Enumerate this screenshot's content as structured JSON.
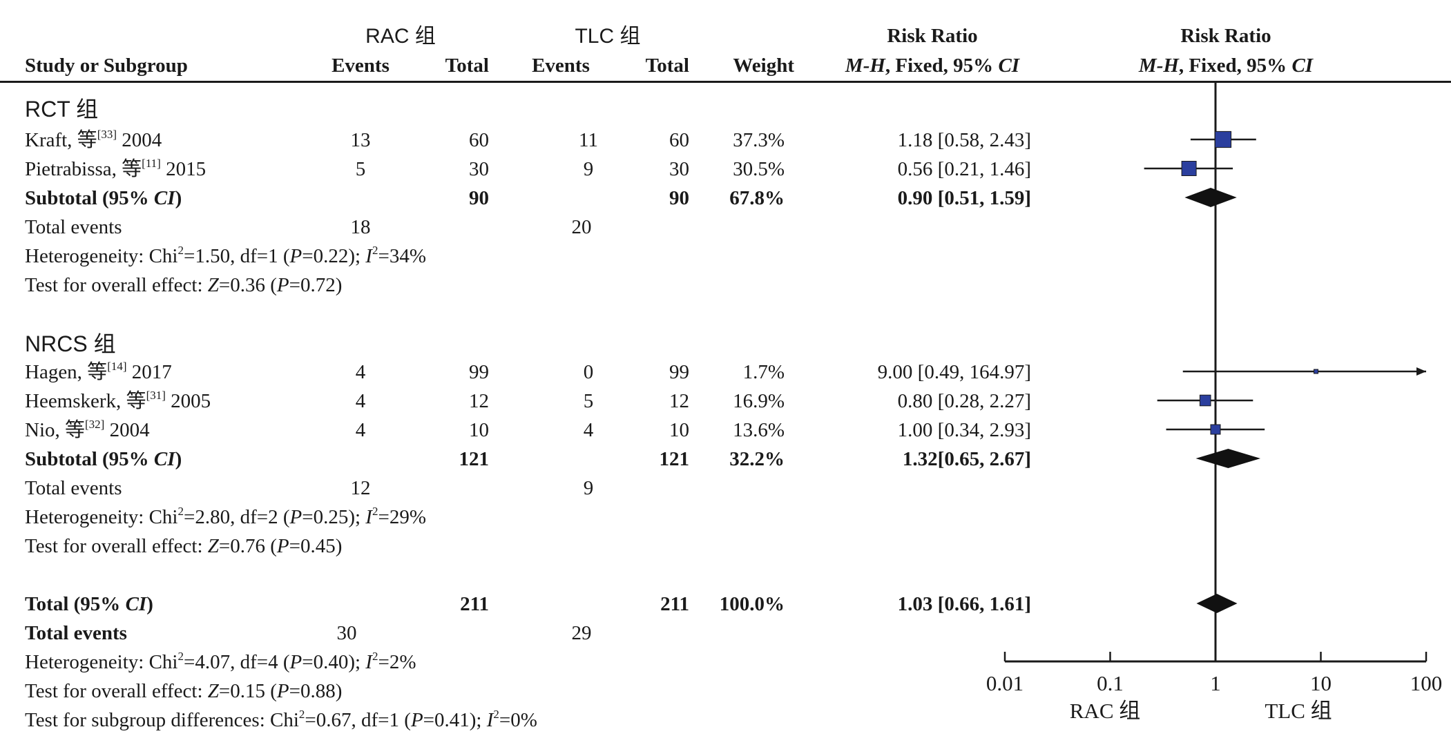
{
  "header": {
    "group1": "RAC 组",
    "group2": "TLC 组",
    "study_col": "Study or Subgroup",
    "events1": "Events",
    "total1": "Total",
    "events2": "Events",
    "total2": "Total",
    "weight": "Weight",
    "rr_title": "Risk Ratio",
    "rr_method_pre": "M-H",
    "rr_method_mid": ", Fixed, 95% ",
    "rr_method_ci": "CI",
    "plot_title": "Risk Ratio",
    "plot_method_pre": "M-H",
    "plot_method_mid": ", Fixed, 95% ",
    "plot_method_ci": "CI"
  },
  "subgroups": [
    {
      "name": "RCT 组",
      "studies": [
        {
          "author": "Kraft, 等",
          "ref": "[33]",
          "year": "2004",
          "e1": "13",
          "t1": "60",
          "e2": "11",
          "t2": "60",
          "weight": "37.3%",
          "rr_text": "1.18 [0.58, 2.43]"
        },
        {
          "author": "Pietrabissa, 等",
          "ref": "[11]",
          "year": "2015",
          "e1": "5",
          "t1": "30",
          "e2": "9",
          "t2": "30",
          "weight": "30.5%",
          "rr_text": "0.56 [0.21, 1.46]"
        }
      ],
      "subtotal": {
        "label_pre": "Subtotal (95% ",
        "label_ci": "CI",
        "label_post": ")",
        "t1": "90",
        "t2": "90",
        "weight": "67.8%",
        "rr_text": "0.90 [0.51, 1.59]"
      },
      "total_events": {
        "label": "Total events",
        "e1": "18",
        "e2": "20"
      },
      "heterogeneity": {
        "pre": "Heterogeneity: Chi",
        "sup": "2",
        "mid": "=1.50, df=1 (",
        "p": "P",
        "pval": "=0.22); ",
        "i": "I",
        "isup": "2",
        "ival": "=34%"
      },
      "overall": {
        "pre": "Test for overall effect: ",
        "z": "Z",
        "zval": "=0.36 (",
        "p": "P",
        "pval": "=0.72)"
      }
    },
    {
      "name": "NRCS 组",
      "studies": [
        {
          "author": "Hagen, 等",
          "ref": "[14]",
          "year": "2017",
          "e1": "4",
          "t1": "99",
          "e2": "0",
          "t2": "99",
          "weight": "1.7%",
          "rr_text": "9.00 [0.49, 164.97]"
        },
        {
          "author": "Heemskerk, 等",
          "ref": "[31]",
          "year": "2005",
          "e1": "4",
          "t1": "12",
          "e2": "5",
          "t2": "12",
          "weight": "16.9%",
          "rr_text": "0.80 [0.28, 2.27]"
        },
        {
          "author": "Nio, 等",
          "ref": "[32]",
          "year": "2004",
          "e1": "4",
          "t1": "10",
          "e2": "4",
          "t2": "10",
          "weight": "13.6%",
          "rr_text": "1.00 [0.34, 2.93]"
        }
      ],
      "subtotal": {
        "label_pre": "Subtotal (95% ",
        "label_ci": "CI",
        "label_post": ")",
        "t1": "121",
        "t2": "121",
        "weight": "32.2%",
        "rr_text": "1.32[0.65, 2.67]"
      },
      "total_events": {
        "label": "Total events",
        "e1": "12",
        "e2": "9"
      },
      "heterogeneity": {
        "pre": "Heterogeneity: Chi",
        "sup": "2",
        "mid": "=2.80, df=2 (",
        "p": "P",
        "pval": "=0.25); ",
        "i": "I",
        "isup": "2",
        "ival": "=29%"
      },
      "overall": {
        "pre": "Test for overall effect: ",
        "z": "Z",
        "zval": "=0.76 (",
        "p": "P",
        "pval": "=0.45)"
      }
    }
  ],
  "total": {
    "label_pre": "Total (95% ",
    "label_ci": "CI",
    "label_post": ")",
    "t1": "211",
    "t2": "211",
    "weight": "100.0%",
    "rr_text": "1.03 [0.66, 1.61]",
    "events_label": "Total events",
    "e1": "30",
    "e2": "29",
    "heterogeneity": {
      "pre": "Heterogeneity: Chi",
      "sup": "2",
      "mid": "=4.07, df=4 (",
      "p": "P",
      "pval": "=0.40); ",
      "i": "I",
      "isup": "2",
      "ival": "=2%"
    },
    "overall": {
      "pre": "Test for overall effect: ",
      "z": "Z",
      "zval": "=0.15 (",
      "p": "P",
      "pval": "=0.88)"
    },
    "subgroup_diff": {
      "pre": "Test for subgroup differences: Chi",
      "sup": "2",
      "mid": "=0.67, df=1 (",
      "p": "P",
      "pval": "=0.41); ",
      "i": "I",
      "isup": "2",
      "ival": "=0%"
    }
  },
  "chart_data": {
    "type": "forest",
    "scale": "log",
    "xlim": [
      0.01,
      100
    ],
    "ticks": [
      0.01,
      0.1,
      1,
      10,
      100
    ],
    "tick_labels": [
      "0.01",
      "0.1",
      "1",
      "10",
      "100"
    ],
    "favours_left": "RAC 组",
    "favours_right": "TLC 组",
    "null_value": 1,
    "studies": [
      {
        "label": "Kraft, 等 2004",
        "rr": 1.18,
        "lo": 0.58,
        "hi": 2.43,
        "weight": 37.3
      },
      {
        "label": "Pietrabissa, 等 2015",
        "rr": 0.56,
        "lo": 0.21,
        "hi": 1.46,
        "weight": 30.5
      },
      {
        "label": "Hagen, 等 2017",
        "rr": 9.0,
        "lo": 0.49,
        "hi": 164.97,
        "weight": 1.7
      },
      {
        "label": "Heemskerk, 等 2005",
        "rr": 0.8,
        "lo": 0.28,
        "hi": 2.27,
        "weight": 16.9
      },
      {
        "label": "Nio, 等 2004",
        "rr": 1.0,
        "lo": 0.34,
        "hi": 2.93,
        "weight": 13.6
      }
    ],
    "pooled": [
      {
        "label": "Subtotal RCT 组",
        "rr": 0.9,
        "lo": 0.51,
        "hi": 1.59
      },
      {
        "label": "Subtotal NRCS 组",
        "rr": 1.32,
        "lo": 0.65,
        "hi": 2.67
      },
      {
        "label": "Total",
        "rr": 1.03,
        "lo": 0.66,
        "hi": 1.61
      }
    ],
    "colors": {
      "square": "#2b3f9e",
      "diamond": "#111111",
      "line": "#1a1a1a"
    }
  }
}
